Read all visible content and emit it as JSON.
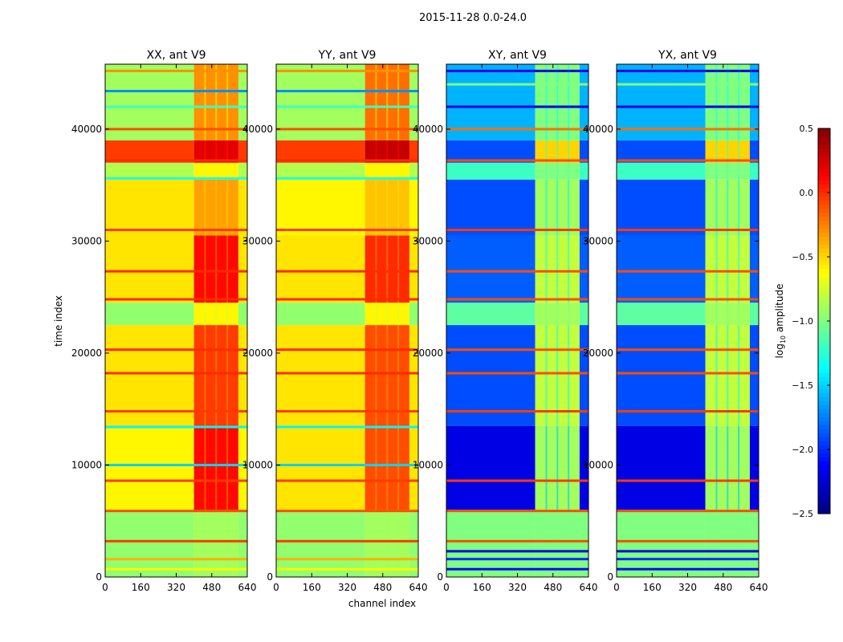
{
  "chart_data": {
    "type": "heatmap",
    "title": "2015-11-28 0.0-24.0",
    "xlabel": "channel index",
    "ylabel": "time index",
    "xlim": [
      0,
      640
    ],
    "ylim": [
      0,
      45800
    ],
    "xticks": [
      "0",
      "160",
      "320",
      "480",
      "640"
    ],
    "xtick_values": [
      0,
      160,
      320,
      480,
      640
    ],
    "yticks": [
      "0",
      "10000",
      "20000",
      "30000",
      "40000"
    ],
    "ytick_values": [
      0,
      10000,
      20000,
      30000,
      40000
    ],
    "hot_channel_range": [
      400,
      600
    ],
    "colorbar": {
      "label_main": "log",
      "label_sub": "10",
      "label_rest": " amplitude",
      "colormap": "jet",
      "range": [
        -2.5,
        0.5
      ],
      "ticks": [
        "0.5",
        "0.0",
        "−0.5",
        "−1.0",
        "−1.5",
        "−2.0",
        "−2.5"
      ],
      "tick_values": [
        0.5,
        0.0,
        -0.5,
        -1.0,
        -1.5,
        -2.0,
        -2.5
      ]
    },
    "panels": [
      {
        "title": "XX, ant V9",
        "bands": [
          {
            "t": [
              0,
              6000
            ],
            "low": -0.95,
            "high": -0.9
          },
          {
            "t": [
              6000,
              13500
            ],
            "low": -0.6,
            "high": 0.1
          },
          {
            "t": [
              13500,
              22500
            ],
            "low": -0.55,
            "high": -0.05
          },
          {
            "t": [
              22500,
              24500
            ],
            "low": -0.95,
            "high": -0.6
          },
          {
            "t": [
              24500,
              30500
            ],
            "low": -0.55,
            "high": 0.1
          },
          {
            "t": [
              30500,
              35500
            ],
            "low": -0.55,
            "high": -0.35
          },
          {
            "t": [
              35500,
              37000
            ],
            "low": -0.85,
            "high": -0.6
          },
          {
            "t": [
              37000,
              39000
            ],
            "low": -0.05,
            "high": 0.2
          },
          {
            "t": [
              39000,
              45800
            ],
            "low": -0.9,
            "high": -0.3
          }
        ],
        "lines": [
          {
            "t": 700,
            "v": -0.6
          },
          {
            "t": 1600,
            "v": -0.4
          },
          {
            "t": 3200,
            "v": -0.05
          },
          {
            "t": 5900,
            "v": -0.1
          },
          {
            "t": 8600,
            "v": -0.05
          },
          {
            "t": 10000,
            "v": -1.5
          },
          {
            "t": 13400,
            "v": -1.4
          },
          {
            "t": 14800,
            "v": -0.05
          },
          {
            "t": 18200,
            "v": 0.0
          },
          {
            "t": 20300,
            "v": 0.0
          },
          {
            "t": 24800,
            "v": 0.0
          },
          {
            "t": 27300,
            "v": 0.0
          },
          {
            "t": 31000,
            "v": -0.05
          },
          {
            "t": 35600,
            "v": -1.3
          },
          {
            "t": 37200,
            "v": 0.0
          },
          {
            "t": 40000,
            "v": -0.1
          },
          {
            "t": 42000,
            "v": -1.2
          },
          {
            "t": 43400,
            "v": -1.7
          },
          {
            "t": 45200,
            "v": -0.3
          }
        ]
      },
      {
        "title": "YY, ant V9",
        "bands": [
          {
            "t": [
              0,
              6000
            ],
            "low": -0.95,
            "high": -0.9
          },
          {
            "t": [
              6000,
              13500
            ],
            "low": -0.55,
            "high": -0.1
          },
          {
            "t": [
              13500,
              22500
            ],
            "low": -0.55,
            "high": -0.1
          },
          {
            "t": [
              22500,
              24500
            ],
            "low": -0.95,
            "high": -0.6
          },
          {
            "t": [
              24500,
              30500
            ],
            "low": -0.55,
            "high": 0.0
          },
          {
            "t": [
              30500,
              35500
            ],
            "low": -0.6,
            "high": -0.45
          },
          {
            "t": [
              35500,
              37000
            ],
            "low": -0.85,
            "high": -0.6
          },
          {
            "t": [
              37000,
              39000
            ],
            "low": -0.05,
            "high": 0.3
          },
          {
            "t": [
              39000,
              45800
            ],
            "low": -0.9,
            "high": -0.2
          }
        ],
        "lines": [
          {
            "t": 700,
            "v": -0.6
          },
          {
            "t": 1600,
            "v": -0.4
          },
          {
            "t": 3200,
            "v": -0.05
          },
          {
            "t": 5900,
            "v": -0.1
          },
          {
            "t": 8600,
            "v": -0.05
          },
          {
            "t": 10000,
            "v": -1.5
          },
          {
            "t": 13400,
            "v": -1.4
          },
          {
            "t": 14800,
            "v": -0.05
          },
          {
            "t": 18200,
            "v": 0.0
          },
          {
            "t": 20300,
            "v": 0.0
          },
          {
            "t": 24800,
            "v": 0.0
          },
          {
            "t": 27300,
            "v": 0.0
          },
          {
            "t": 31000,
            "v": -0.05
          },
          {
            "t": 35600,
            "v": -1.3
          },
          {
            "t": 37200,
            "v": 0.0
          },
          {
            "t": 40000,
            "v": -0.1
          },
          {
            "t": 42000,
            "v": -1.2
          },
          {
            "t": 43400,
            "v": -1.7
          },
          {
            "t": 45200,
            "v": -0.3
          }
        ]
      },
      {
        "title": "XY, ant V9",
        "bands": [
          {
            "t": [
              0,
              6000
            ],
            "low": -1.0,
            "high": -1.0
          },
          {
            "t": [
              6000,
              13500
            ],
            "low": -2.2,
            "high": -0.9
          },
          {
            "t": [
              13500,
              22500
            ],
            "low": -1.9,
            "high": -0.8
          },
          {
            "t": [
              22500,
              24500
            ],
            "low": -1.1,
            "high": -0.9
          },
          {
            "t": [
              24500,
              30500
            ],
            "low": -1.85,
            "high": -0.8
          },
          {
            "t": [
              30500,
              35500
            ],
            "low": -1.9,
            "high": -0.9
          },
          {
            "t": [
              35500,
              37000
            ],
            "low": -1.2,
            "high": -1.0
          },
          {
            "t": [
              37000,
              39000
            ],
            "low": -1.9,
            "high": -0.5
          },
          {
            "t": [
              39000,
              45800
            ],
            "low": -1.6,
            "high": -1.0
          }
        ],
        "lines": [
          {
            "t": 700,
            "v": -2.1
          },
          {
            "t": 1600,
            "v": -2.0
          },
          {
            "t": 2300,
            "v": -2.2
          },
          {
            "t": 3200,
            "v": -0.1
          },
          {
            "t": 5900,
            "v": -0.1
          },
          {
            "t": 8600,
            "v": -0.05
          },
          {
            "t": 14800,
            "v": -0.05
          },
          {
            "t": 18200,
            "v": -0.1
          },
          {
            "t": 20300,
            "v": -0.1
          },
          {
            "t": 24800,
            "v": -0.1
          },
          {
            "t": 27300,
            "v": -0.1
          },
          {
            "t": 31000,
            "v": -0.05
          },
          {
            "t": 37200,
            "v": -0.1
          },
          {
            "t": 40000,
            "v": -0.2
          },
          {
            "t": 42000,
            "v": -2.2
          },
          {
            "t": 44000,
            "v": -1.0
          },
          {
            "t": 45200,
            "v": -2.2
          }
        ]
      },
      {
        "title": "YX, ant V9",
        "bands": [
          {
            "t": [
              0,
              6000
            ],
            "low": -1.0,
            "high": -1.0
          },
          {
            "t": [
              6000,
              13500
            ],
            "low": -2.2,
            "high": -0.9
          },
          {
            "t": [
              13500,
              22500
            ],
            "low": -1.9,
            "high": -0.8
          },
          {
            "t": [
              22500,
              24500
            ],
            "low": -1.1,
            "high": -0.9
          },
          {
            "t": [
              24500,
              30500
            ],
            "low": -1.85,
            "high": -0.8
          },
          {
            "t": [
              30500,
              35500
            ],
            "low": -1.9,
            "high": -0.9
          },
          {
            "t": [
              35500,
              37000
            ],
            "low": -1.2,
            "high": -1.0
          },
          {
            "t": [
              37000,
              39000
            ],
            "low": -1.9,
            "high": -0.5
          },
          {
            "t": [
              39000,
              45800
            ],
            "low": -1.6,
            "high": -1.0
          }
        ],
        "lines": [
          {
            "t": 700,
            "v": -2.1
          },
          {
            "t": 1600,
            "v": -2.0
          },
          {
            "t": 2300,
            "v": -2.2
          },
          {
            "t": 3200,
            "v": -0.1
          },
          {
            "t": 5900,
            "v": -0.1
          },
          {
            "t": 8600,
            "v": -0.05
          },
          {
            "t": 14800,
            "v": -0.05
          },
          {
            "t": 18200,
            "v": -0.1
          },
          {
            "t": 20300,
            "v": -0.1
          },
          {
            "t": 24800,
            "v": -0.1
          },
          {
            "t": 27300,
            "v": -0.1
          },
          {
            "t": 31000,
            "v": -0.05
          },
          {
            "t": 37200,
            "v": -0.1
          },
          {
            "t": 40000,
            "v": -0.2
          },
          {
            "t": 42000,
            "v": -2.2
          },
          {
            "t": 44000,
            "v": -1.0
          },
          {
            "t": 45200,
            "v": -2.2
          }
        ]
      }
    ]
  }
}
